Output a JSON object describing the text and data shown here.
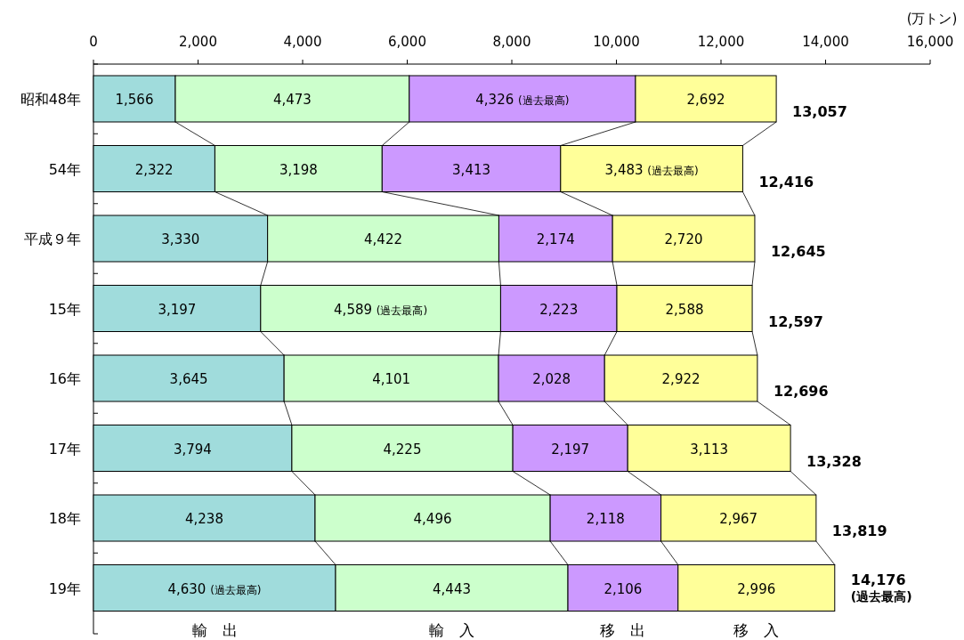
{
  "chart_data": {
    "type": "bar",
    "orientation": "horizontal",
    "stacked": true,
    "xlabel": "(万トン)",
    "categories": [
      "昭和48年",
      "54年",
      "平成９年",
      "15年",
      "16年",
      "17年",
      "18年",
      "19年"
    ],
    "series": [
      {
        "name": "輸　出",
        "color": "#a0dcdc",
        "values": [
          1566,
          2322,
          3330,
          3197,
          3645,
          3794,
          4238,
          4630
        ],
        "value_labels": [
          "1,566",
          "2,322",
          "3,330",
          "3,197",
          "3,645",
          "3,794",
          "4,238",
          "4,630 (過去最高)"
        ]
      },
      {
        "name": "輸　入",
        "color": "#ccffcc",
        "values": [
          4473,
          3198,
          4422,
          4589,
          4101,
          4225,
          4496,
          4443
        ],
        "value_labels": [
          "4,473",
          "3,198",
          "4,422",
          "4,589 (過去最高)",
          "4,101",
          "4,225",
          "4,496",
          "4,443"
        ]
      },
      {
        "name": "移　出",
        "color": "#cc99ff",
        "values": [
          4326,
          3413,
          2174,
          2223,
          2028,
          2197,
          2118,
          2106
        ],
        "value_labels": [
          "4,326 (過去最高)",
          "3,413",
          "2,174",
          "2,223",
          "2,028",
          "2,197",
          "2,118",
          "2,106"
        ]
      },
      {
        "name": "移　入",
        "color": "#ffff99",
        "values": [
          2692,
          3483,
          2720,
          2588,
          2922,
          3113,
          2967,
          2996
        ],
        "value_labels": [
          "2,692",
          "3,483 (過去最高)",
          "2,720",
          "2,588",
          "2,922",
          "3,113",
          "2,967",
          "2,996"
        ]
      }
    ],
    "totals": [
      "13,057",
      "12,416",
      "12,645",
      "12,597",
      "12,696",
      "13,328",
      "13,819",
      "14,176\n(過去最高)"
    ],
    "xlim": [
      0,
      16000
    ],
    "xticks": [
      0,
      {
        "value": 2000,
        "label": "2,000"
      },
      {
        "value": 4000,
        "label": "4,000"
      },
      {
        "value": 6000,
        "label": "6,000"
      },
      {
        "value": 8000,
        "label": "8,000"
      },
      {
        "value": 10000,
        "label": "10,000"
      },
      {
        "value": 12000,
        "label": "12,000"
      },
      {
        "value": 14000,
        "label": "14,000"
      },
      {
        "value": 16000,
        "label": "16,000"
      }
    ],
    "grid": false
  }
}
